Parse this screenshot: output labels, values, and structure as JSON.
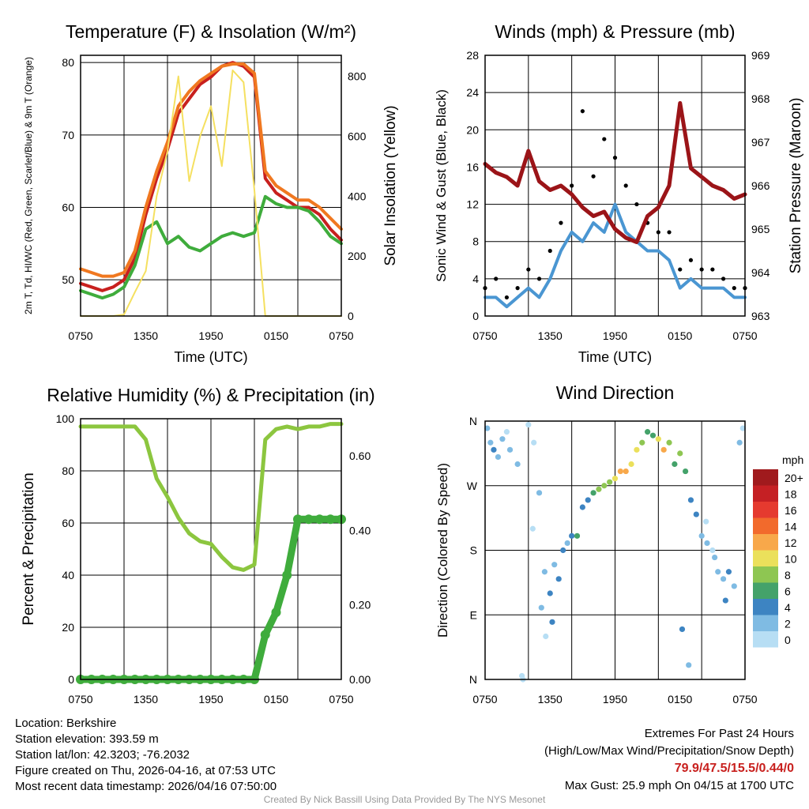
{
  "colors": {
    "red": "#c8201e",
    "orange": "#f07820",
    "green": "#3fac3c",
    "yellow": "#f5e060",
    "maroon": "#9b1418",
    "blue": "#4a96d2",
    "black": "#000000",
    "rh": "#8cc63f",
    "precip": "#3fac3c",
    "extremes": "#c8201e"
  },
  "chart_data": [
    {
      "id": "temp",
      "type": "line",
      "title": "Temperature (F) & Insolation (W/m²)",
      "xlabel": "Time (UTC)",
      "ylabel": "2m T, Td, HI/WC (Red, Green, Scarlet/Blue) & 9m T (Orange)",
      "y2label": "Solar Insolation (Yellow)",
      "x_ticks": [
        "0750",
        "1350",
        "1950",
        "0150",
        "0750"
      ],
      "y_ticks": [
        50,
        60,
        70,
        80
      ],
      "y2_ticks": [
        0,
        200,
        400,
        600,
        800
      ],
      "ylim": [
        45,
        81
      ],
      "y2lim": [
        0,
        870
      ],
      "x": [
        0,
        1,
        2,
        3,
        4,
        5,
        6,
        7,
        8,
        9,
        10,
        11,
        12,
        13,
        14,
        15,
        16,
        17,
        18,
        19,
        20,
        21,
        22,
        23,
        24
      ],
      "series": [
        {
          "name": "2m T",
          "color": "red",
          "values": [
            49.5,
            49,
            48.5,
            49,
            50,
            53,
            59,
            64,
            68,
            73,
            75,
            77,
            78,
            79.5,
            80,
            79.5,
            78,
            64,
            62,
            61,
            60,
            60,
            59,
            57,
            55.5
          ]
        },
        {
          "name": "9m T",
          "color": "orange",
          "values": [
            51.5,
            51,
            50.5,
            50.5,
            51,
            54,
            60,
            65,
            69,
            74,
            76,
            77.5,
            78.5,
            79.5,
            79.8,
            79.8,
            78.5,
            65,
            63,
            62,
            61,
            61,
            60,
            58.5,
            57
          ]
        },
        {
          "name": "Td",
          "color": "green",
          "values": [
            48.5,
            48,
            47.5,
            48,
            49,
            52,
            57,
            58,
            55,
            56,
            54.5,
            54,
            55,
            56,
            56.5,
            56,
            56.5,
            61.5,
            60.5,
            60,
            60,
            59.5,
            58,
            56,
            55
          ]
        },
        {
          "name": "Solar Insolation",
          "color": "yellow",
          "axis": "y2",
          "values": [
            0,
            0,
            0,
            0,
            5,
            80,
            150,
            400,
            550,
            800,
            450,
            600,
            700,
            500,
            820,
            780,
            420,
            0,
            0,
            0,
            0,
            0,
            0,
            0,
            0
          ]
        }
      ]
    },
    {
      "id": "wind",
      "type": "line",
      "title": "Winds (mph) & Pressure (mb)",
      "xlabel": "Time (UTC)",
      "ylabel": "Sonic Wind & Gust (Blue, Black)",
      "y2label": "Station Pressure (Maroon)",
      "x_ticks": [
        "0750",
        "1350",
        "1950",
        "0150",
        "0750"
      ],
      "y_ticks": [
        0,
        4,
        8,
        12,
        16,
        20,
        24,
        28
      ],
      "y2_ticks": [
        963,
        964,
        965,
        966,
        967,
        968,
        969
      ],
      "ylim": [
        0,
        28
      ],
      "y2lim": [
        963,
        969
      ],
      "x": [
        0,
        1,
        2,
        3,
        4,
        5,
        6,
        7,
        8,
        9,
        10,
        11,
        12,
        13,
        14,
        15,
        16,
        17,
        18,
        19,
        20,
        21,
        22,
        23,
        24
      ],
      "series": [
        {
          "name": "Sonic Wind",
          "color": "blue",
          "values": [
            2,
            2,
            1,
            2,
            3,
            2,
            4,
            7,
            9,
            8,
            10,
            9,
            12,
            9,
            8,
            7,
            7,
            6,
            3,
            4,
            3,
            3,
            3,
            2,
            2
          ]
        },
        {
          "name": "Gust",
          "color": "black",
          "type": "scatter",
          "values": [
            3,
            4,
            2,
            3,
            5,
            4,
            7,
            10,
            14,
            22,
            15,
            19,
            17,
            14,
            12,
            10,
            9,
            9,
            5,
            6,
            5,
            5,
            4,
            3,
            3
          ]
        },
        {
          "name": "Station Pressure",
          "color": "maroon",
          "axis": "y2",
          "values": [
            966.5,
            966.3,
            966.2,
            966.0,
            966.8,
            966.1,
            965.9,
            966.0,
            965.8,
            965.5,
            965.3,
            965.4,
            965.0,
            964.8,
            964.7,
            965.3,
            965.5,
            966.0,
            967.9,
            966.4,
            966.2,
            966.0,
            965.9,
            965.7,
            965.8
          ]
        }
      ]
    },
    {
      "id": "rh",
      "type": "line",
      "title": "Relative Humidity (%) & Precipitation (in)",
      "xlabel": "",
      "ylabel": "Percent & Precipitation",
      "x_ticks": [
        "0750",
        "1350",
        "1950",
        "0150",
        "0750"
      ],
      "y_ticks": [
        0,
        20,
        40,
        60,
        80,
        100
      ],
      "y2_ticks": [
        "0.00",
        "0.20",
        "0.40",
        "0.60"
      ],
      "ylim": [
        0,
        100
      ],
      "y2lim": [
        0,
        0.7
      ],
      "x": [
        0,
        1,
        2,
        3,
        4,
        5,
        6,
        7,
        8,
        9,
        10,
        11,
        12,
        13,
        14,
        15,
        16,
        17,
        18,
        19,
        20,
        21,
        22,
        23,
        24
      ],
      "series": [
        {
          "name": "Relative Humidity",
          "color": "rh",
          "values": [
            97,
            97,
            97,
            97,
            97,
            97,
            92,
            77,
            70,
            62,
            56,
            53,
            52,
            47,
            43,
            42,
            44,
            92,
            96,
            97,
            96,
            97,
            97,
            98,
            98
          ]
        },
        {
          "name": "Precipitation",
          "color": "precip",
          "type": "scatter",
          "axis": "y2",
          "values": [
            0,
            0,
            0,
            0,
            0,
            0,
            0,
            0,
            0,
            0,
            0,
            0,
            0,
            0,
            0,
            0,
            0,
            0.12,
            0.18,
            0.28,
            0.43,
            0.43,
            0.43,
            0.43,
            0.43
          ]
        }
      ]
    },
    {
      "id": "dir",
      "type": "scatter",
      "title": "Wind Direction",
      "ylabel": "Direction (Colored By Speed)",
      "x_ticks": [
        "0750",
        "1350",
        "1950",
        "0150",
        "0750"
      ],
      "y_ticks": [
        "N",
        "E",
        "S",
        "W",
        "N"
      ],
      "colorbar_label": "mph",
      "colorbar": [
        {
          "label": "20+",
          "color": "#a01a1d"
        },
        {
          "label": "18",
          "color": "#c52024"
        },
        {
          "label": "16",
          "color": "#e53a2f"
        },
        {
          "label": "14",
          "color": "#f26a2c"
        },
        {
          "label": "12",
          "color": "#f8a84a"
        },
        {
          "label": "10",
          "color": "#ebe05b"
        },
        {
          "label": "8",
          "color": "#8ec652"
        },
        {
          "label": "6",
          "color": "#44a26a"
        },
        {
          "label": "4",
          "color": "#3d84c2"
        },
        {
          "label": "2",
          "color": "#7fbbe3"
        },
        {
          "label": "0",
          "color": "#b7def4"
        }
      ],
      "series": [
        {
          "name": "Direction (deg)",
          "x": [
            0.2,
            0.5,
            0.8,
            1.2,
            1.6,
            2.0,
            2.3,
            3.0,
            3.5,
            4.0,
            4.5,
            5.0,
            5.5,
            6.0,
            6.4,
            6.8,
            7.2,
            7.6,
            8.0,
            8.5,
            9.0,
            9.5,
            10.0,
            10.5,
            11.0,
            11.5,
            12.0,
            12.5,
            13.0,
            13.5,
            14.0,
            14.5,
            15.0,
            15.5,
            16.0,
            16.5,
            17.0,
            17.5,
            18.0,
            18.5,
            19.0,
            19.5,
            20.0,
            20.5,
            21.0,
            21.5,
            22.0,
            22.5,
            23.0,
            23.5,
            23.8,
            5.2,
            5.6,
            6.2,
            18.2,
            18.8,
            20.4,
            21.2,
            22.2,
            3.4,
            4.4
          ],
          "y": [
            350,
            330,
            320,
            310,
            335,
            345,
            320,
            300,
            0,
            355,
            330,
            260,
            150,
            120,
            160,
            140,
            180,
            190,
            200,
            200,
            240,
            250,
            260,
            265,
            270,
            275,
            280,
            290,
            290,
            300,
            320,
            330,
            345,
            340,
            335,
            320,
            330,
            300,
            315,
            290,
            250,
            230,
            200,
            190,
            180,
            150,
            140,
            150,
            130,
            330,
            350,
            100,
            60,
            80,
            70,
            20,
            220,
            170,
            110,
            5,
            210
          ],
          "speed": [
            3,
            2,
            4,
            3,
            2,
            1,
            3,
            2,
            1,
            1,
            1,
            2,
            3,
            4,
            2,
            5,
            4,
            3,
            5,
            6,
            5,
            4,
            6,
            8,
            9,
            8,
            10,
            12,
            12,
            11,
            10,
            8,
            7,
            6,
            11,
            12,
            8,
            7,
            9,
            6,
            4,
            5,
            3,
            2,
            1,
            2,
            3,
            4,
            2,
            2,
            1,
            2,
            1,
            4,
            4,
            3,
            1,
            2,
            4,
            0,
            1
          ]
        }
      ]
    }
  ],
  "info": {
    "location": "Location: Berkshire",
    "elevation": "Station elevation: 393.59 m",
    "latlon": "Station lat/lon: 42.3203; -76.2032",
    "created": "Figure created on Thu, 2026-04-16, at 07:53 UTC",
    "recent": "Most recent data timestamp: 2026/04/16 07:50:00"
  },
  "extremes": {
    "title": "Extremes For Past 24 Hours",
    "subtitle": "(High/Low/Max Wind/Precipitation/Snow Depth)",
    "values": "79.9/47.5/15.5/0.44/0",
    "gust": "Max Gust: 25.9 mph On 04/15 at 1700 UTC"
  },
  "footer": "Created By Nick Bassill Using Data Provided By The NYS Mesonet"
}
